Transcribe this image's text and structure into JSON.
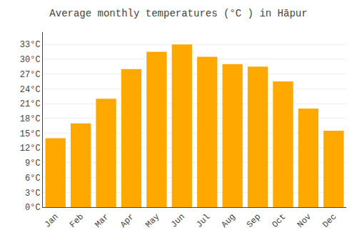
{
  "chart_data": {
    "type": "bar",
    "title": "Average monthly temperatures (°C ) in Hāpur",
    "categories": [
      "Jan",
      "Feb",
      "Mar",
      "Apr",
      "May",
      "Jun",
      "Jul",
      "Aug",
      "Sep",
      "Oct",
      "Nov",
      "Dec"
    ],
    "values": [
      14.0,
      17.0,
      22.0,
      28.0,
      31.5,
      33.0,
      30.5,
      29.0,
      28.5,
      25.5,
      20.0,
      15.5
    ],
    "color": "#FFA800",
    "ylim": [
      0,
      35.5
    ],
    "yticks": [
      {
        "value": 0,
        "label": "0°C"
      },
      {
        "value": 3,
        "label": "3°C"
      },
      {
        "value": 6,
        "label": "6°C"
      },
      {
        "value": 9,
        "label": "9°C"
      },
      {
        "value": 12,
        "label": "12°C"
      },
      {
        "value": 15,
        "label": "15°C"
      },
      {
        "value": 18,
        "label": "18°C"
      },
      {
        "value": 21,
        "label": "21°C"
      },
      {
        "value": 24,
        "label": "24°C"
      },
      {
        "value": 27,
        "label": "27°C"
      },
      {
        "value": 30,
        "label": "30°C"
      },
      {
        "value": 33,
        "label": "33°C"
      }
    ],
    "grid": true
  }
}
